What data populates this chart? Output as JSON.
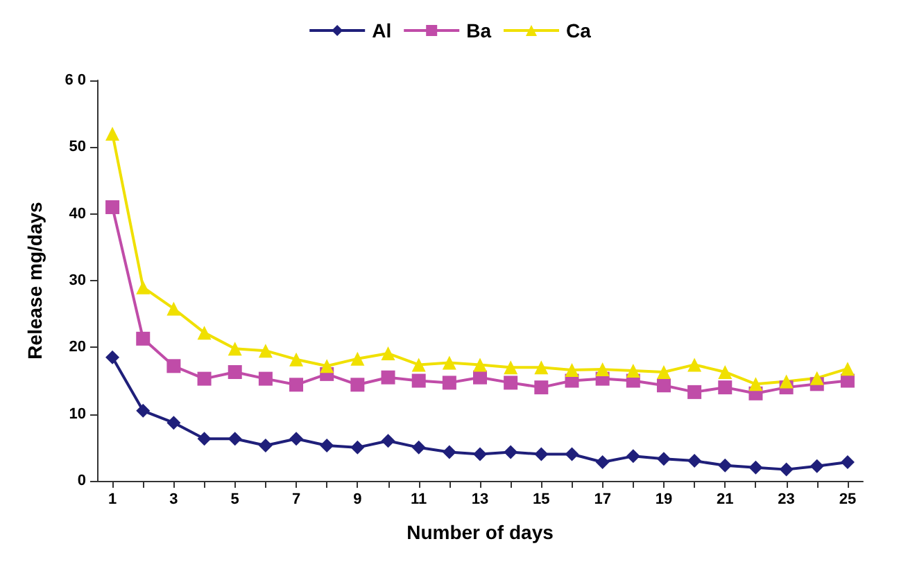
{
  "chart_data": {
    "type": "line",
    "xlabel": "Number of days",
    "ylabel": "Release mg/days",
    "x": [
      1,
      2,
      3,
      4,
      5,
      6,
      7,
      8,
      9,
      10,
      11,
      12,
      13,
      14,
      15,
      16,
      17,
      18,
      19,
      20,
      21,
      22,
      23,
      24,
      25
    ],
    "xlim": [
      0.5,
      25.5
    ],
    "xticks": [
      1,
      {
        "value": 2,
        "label": null
      },
      3,
      {
        "value": 4,
        "label": null
      },
      5,
      {
        "value": 6,
        "label": null
      },
      7,
      {
        "value": 8,
        "label": null
      },
      9,
      {
        "value": 10,
        "label": null
      },
      11,
      {
        "value": 12,
        "label": null
      },
      13,
      {
        "value": 14,
        "label": null
      },
      15,
      {
        "value": 16,
        "label": null
      },
      17,
      {
        "value": 18,
        "label": null
      },
      19,
      {
        "value": 20,
        "label": null
      },
      21,
      {
        "value": 22,
        "label": null
      },
      23,
      {
        "value": 24,
        "label": null
      },
      25
    ],
    "series": [
      {
        "name": "Al",
        "color": "#1f1f7a",
        "marker": "diamond",
        "values": [
          18.5,
          10.5,
          8.7,
          6.3,
          6.3,
          5.3,
          6.3,
          5.3,
          5,
          6,
          5,
          4.3,
          4,
          4.3,
          4,
          4,
          2.8,
          3.7,
          3.3,
          3,
          2.3,
          2,
          1.7,
          2.2,
          2.8
        ]
      },
      {
        "name": "Ba",
        "color": "#c04ca8",
        "marker": "square",
        "values": [
          41,
          21.3,
          17.2,
          15.3,
          16.3,
          15.3,
          14.4,
          16,
          14.4,
          15.5,
          15,
          14.7,
          15.5,
          14.7,
          14,
          15,
          15.3,
          15,
          14.3,
          13.3,
          14,
          13.1,
          14,
          14.5,
          15
        ]
      },
      {
        "name": "Ca",
        "color": "#f0e000",
        "marker": "triangle",
        "values": [
          52,
          29,
          25.8,
          22.2,
          19.8,
          19.5,
          18.2,
          17.2,
          18.3,
          19.1,
          17.4,
          17.7,
          17.4,
          17,
          17,
          16.6,
          16.7,
          16.5,
          16.3,
          17.4,
          16.3,
          14.5,
          14.9,
          15.4,
          16.8
        ]
      }
    ],
    "ylim": [
      0,
      60
    ],
    "yticks": [
      0,
      10,
      20,
      30,
      40,
      50,
      {
        "value": 60,
        "label": "6 0"
      }
    ],
    "grid": false,
    "legend": "top",
    "line_style": "solid"
  }
}
